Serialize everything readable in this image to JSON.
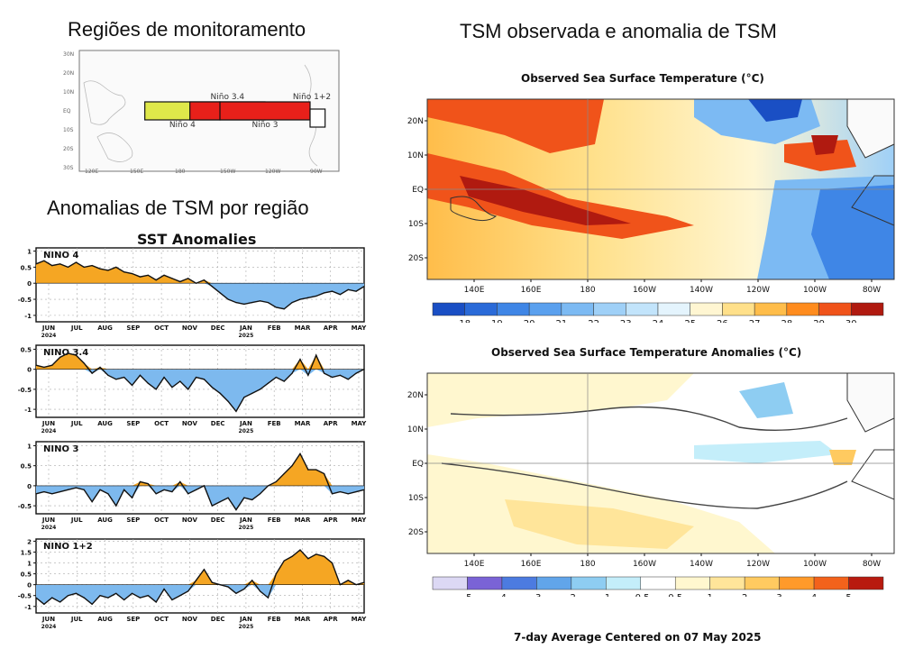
{
  "left": {
    "regions_title": "Regiões de monitoramento",
    "anom_title": "Anomalias de TSM por região"
  },
  "right": {
    "main_title": "TSM observada e anomalia de TSM",
    "sst_title": "Observed Sea Surface Temperature (°C)",
    "anom_title": "Observed Sea Surface Temperature Anomalies (°C)",
    "footer": "7-day Average Centered on 07 May 2025",
    "lat_labels": [
      "20N",
      "10N",
      "EQ",
      "10S",
      "20S"
    ],
    "lon_labels": [
      "140E",
      "160E",
      "180",
      "160W",
      "140W",
      "120W",
      "100W",
      "80W"
    ],
    "sst_scale": {
      "labels": [
        "18",
        "19",
        "20",
        "21",
        "22",
        "23",
        "24",
        "25",
        "26",
        "27",
        "28",
        "29",
        "30"
      ],
      "colors": [
        "#1a4fc4",
        "#2a6ad8",
        "#3f86e6",
        "#5aa0ee",
        "#7cbaf3",
        "#9fd0f7",
        "#c2e4fb",
        "#e4f4fd",
        "#fff6d2",
        "#ffe08a",
        "#ffbd4a",
        "#ff8c1e",
        "#f0531a",
        "#b01a10"
      ]
    },
    "anom_scale": {
      "labels": [
        "-5",
        "-4",
        "-3",
        "-2",
        "-1",
        "-0.5",
        "0.5",
        "1",
        "2",
        "3",
        "4",
        "5"
      ],
      "colors": [
        "#dcd8f4",
        "#7a63d6",
        "#4c7be0",
        "#61a5ea",
        "#8ecdf2",
        "#c4eefa",
        "#ffffff",
        "#fff7cf",
        "#ffe59a",
        "#ffca60",
        "#ff9a2a",
        "#f3621b",
        "#b81a0f"
      ]
    }
  },
  "region_map": {
    "lat_labels": [
      "30N",
      "20N",
      "10N",
      "EQ",
      "10S",
      "20S",
      "30S"
    ],
    "lon_labels": [
      "120E",
      "150E",
      "180",
      "150W",
      "120W",
      "90W"
    ],
    "regions": [
      {
        "name": "Niño 4",
        "label": "Niño 4",
        "color": "#dfe84a",
        "lon_start": 160,
        "lon_end": 210
      },
      {
        "name": "Niño 3.4",
        "label": "Niño 3.4",
        "color": "#e8201a",
        "lon_start": 190,
        "lon_end": 240
      },
      {
        "name": "Niño 3",
        "label": "Niño 3",
        "color": "#e8201a",
        "lon_start": 210,
        "lon_end": 270
      },
      {
        "name": "Niño 1+2",
        "label": "Niño 1+2",
        "color": "#ffffff",
        "lon_start": 270,
        "lon_end": 280
      }
    ]
  },
  "chart_data": [
    {
      "type": "area",
      "title": "SST Anomalies",
      "panel": "NINO 4",
      "ylim": [
        -1.2,
        1.1
      ],
      "yticks": [
        1,
        0.5,
        0,
        -0.5,
        -1
      ],
      "ytick_labels": [
        "1",
        "0.5",
        "0",
        "-0.5",
        "-1"
      ],
      "xtick_labels": [
        "JUN",
        "JUL",
        "AUG",
        "SEP",
        "OCT",
        "NOV",
        "DEC",
        "JAN",
        "FEB",
        "MAR",
        "APR",
        "MAY"
      ],
      "year_labels": [
        "2024",
        "2025"
      ],
      "values": [
        0.6,
        0.7,
        0.55,
        0.6,
        0.5,
        0.65,
        0.5,
        0.55,
        0.45,
        0.4,
        0.5,
        0.35,
        0.3,
        0.2,
        0.25,
        0.1,
        0.25,
        0.15,
        0.05,
        0.15,
        0,
        0.1,
        -0.1,
        -0.3,
        -0.5,
        -0.6,
        -0.65,
        -0.6,
        -0.55,
        -0.6,
        -0.75,
        -0.8,
        -0.6,
        -0.5,
        -0.45,
        -0.4,
        -0.3,
        -0.25,
        -0.35,
        -0.2,
        -0.25,
        -0.1
      ]
    },
    {
      "type": "area",
      "panel": "NINO 3.4",
      "ylim": [
        -1.2,
        0.6
      ],
      "yticks": [
        0.5,
        0,
        -0.5,
        -1
      ],
      "ytick_labels": [
        "0.5",
        "0",
        "-0.5",
        "-1"
      ],
      "xtick_labels": [
        "JUN",
        "JUL",
        "AUG",
        "SEP",
        "OCT",
        "NOV",
        "DEC",
        "JAN",
        "FEB",
        "MAR",
        "APR",
        "MAY"
      ],
      "year_labels": [
        "2024",
        "2025"
      ],
      "values": [
        0.1,
        0.05,
        0.1,
        0.3,
        0.4,
        0.35,
        0.15,
        -0.1,
        0.05,
        -0.15,
        -0.25,
        -0.2,
        -0.4,
        -0.15,
        -0.35,
        -0.5,
        -0.2,
        -0.45,
        -0.3,
        -0.5,
        -0.2,
        -0.25,
        -0.45,
        -0.6,
        -0.8,
        -1.05,
        -0.7,
        -0.6,
        -0.5,
        -0.35,
        -0.2,
        -0.3,
        -0.1,
        0.25,
        -0.15,
        0.35,
        -0.1,
        -0.2,
        -0.15,
        -0.25,
        -0.1,
        0
      ]
    },
    {
      "type": "area",
      "panel": "NINO 3",
      "ylim": [
        -0.7,
        1.1
      ],
      "yticks": [
        1,
        0.5,
        0,
        -0.5
      ],
      "ytick_labels": [
        "1",
        "0.5",
        "0",
        "-0.5"
      ],
      "xtick_labels": [
        "JUN",
        "JUL",
        "AUG",
        "SEP",
        "OCT",
        "NOV",
        "DEC",
        "JAN",
        "FEB",
        "MAR",
        "APR",
        "MAY"
      ],
      "year_labels": [
        "2024",
        "2025"
      ],
      "values": [
        -0.2,
        -0.15,
        -0.2,
        -0.15,
        -0.1,
        -0.05,
        -0.1,
        -0.4,
        -0.1,
        -0.2,
        -0.5,
        -0.1,
        -0.3,
        0.1,
        0.05,
        -0.2,
        -0.1,
        -0.15,
        0.1,
        -0.2,
        -0.1,
        0,
        -0.5,
        -0.4,
        -0.3,
        -0.6,
        -0.3,
        -0.35,
        -0.2,
        0,
        0.1,
        0.3,
        0.5,
        0.8,
        0.4,
        0.4,
        0.3,
        -0.2,
        -0.15,
        -0.2,
        -0.15,
        -0.1
      ]
    },
    {
      "type": "area",
      "panel": "NINO 1+2",
      "ylim": [
        -1.3,
        2.1
      ],
      "yticks": [
        2,
        1.5,
        1,
        0.5,
        0,
        -0.5,
        -1
      ],
      "ytick_labels": [
        "2",
        "1.5",
        "1",
        "0.5",
        "0",
        "-0.5",
        "-1"
      ],
      "xtick_labels": [
        "JUN",
        "JUL",
        "AUG",
        "SEP",
        "OCT",
        "NOV",
        "DEC",
        "JAN",
        "FEB",
        "MAR",
        "APR",
        "MAY"
      ],
      "year_labels": [
        "2024",
        "2025"
      ],
      "values": [
        -0.6,
        -0.9,
        -0.6,
        -0.8,
        -0.5,
        -0.4,
        -0.6,
        -0.9,
        -0.5,
        -0.6,
        -0.4,
        -0.7,
        -0.4,
        -0.6,
        -0.5,
        -0.8,
        -0.2,
        -0.7,
        -0.5,
        -0.3,
        0.2,
        0.7,
        0.1,
        0.0,
        -0.1,
        -0.4,
        -0.2,
        0.2,
        -0.3,
        -0.6,
        0.5,
        1.1,
        1.3,
        1.6,
        1.2,
        1.4,
        1.3,
        1.0,
        0.0,
        0.2,
        0.0,
        0.1
      ]
    }
  ]
}
